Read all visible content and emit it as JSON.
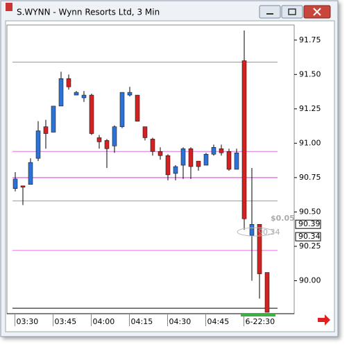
{
  "window_title": "S.WYNN - Wynn Resorts Ltd, 3 Min",
  "chart_data": {
    "type": "candlestick",
    "up_color": "#2f72d6",
    "down_color": "#d42222",
    "categories": [
      "03:30",
      null,
      null,
      null,
      null,
      "03:45",
      null,
      null,
      null,
      null,
      "04:00",
      null,
      null,
      null,
      null,
      "04:15",
      null,
      null,
      null,
      null,
      "04:30",
      null,
      null,
      null,
      null,
      "04:45",
      null,
      null,
      null,
      null,
      "6-22:30",
      null,
      null,
      null
    ],
    "open": [
      90.67,
      90.69,
      90.7,
      90.89,
      91.12,
      91.08,
      91.27,
      91.47,
      91.35,
      91.33,
      91.35,
      91.04,
      91.02,
      90.98,
      91.12,
      91.35,
      91.35,
      91.12,
      91.03,
      90.94,
      90.91,
      90.78,
      90.84,
      90.96,
      90.87,
      90.84,
      90.92,
      90.96,
      90.94,
      90.81,
      91.6,
      90.33,
      90.41,
      90.06
    ],
    "high": [
      90.79,
      90.69,
      90.89,
      91.16,
      91.17,
      91.27,
      91.52,
      91.5,
      91.38,
      91.38,
      91.36,
      91.06,
      91.03,
      91.13,
      91.37,
      91.41,
      91.35,
      91.12,
      91.04,
      90.97,
      90.92,
      90.84,
      90.97,
      90.97,
      90.87,
      90.93,
      90.99,
      90.99,
      90.96,
      90.96,
      91.82,
      90.82,
      90.41,
      90.06
    ],
    "low": [
      90.65,
      90.55,
      90.7,
      90.87,
      90.96,
      91.08,
      91.27,
      91.39,
      91.35,
      91.3,
      91.06,
      90.96,
      90.82,
      90.93,
      91.11,
      91.34,
      91.16,
      91.02,
      90.91,
      90.88,
      90.73,
      90.73,
      90.74,
      90.74,
      90.8,
      90.84,
      90.91,
      90.91,
      90.8,
      90.81,
      90.37,
      90.0,
      89.87,
      89.77
    ],
    "close": [
      90.74,
      90.68,
      90.86,
      91.09,
      91.07,
      91.27,
      91.47,
      91.41,
      91.37,
      91.35,
      91.07,
      91.01,
      90.96,
      91.12,
      91.37,
      91.37,
      91.16,
      91.04,
      90.94,
      90.91,
      90.77,
      90.83,
      90.96,
      90.83,
      90.83,
      90.92,
      90.97,
      90.93,
      90.81,
      90.93,
      90.45,
      90.41,
      90.05,
      89.77
    ],
    "ylim": [
      89.76,
      91.86
    ],
    "yticks": [
      90.25,
      {
        "value": 90.5,
        "label": "90.50"
      },
      90.75,
      {
        "value": 91.0,
        "label": "91.00"
      },
      91.25,
      {
        "value": 91.5,
        "label": "91.50"
      },
      91.75,
      {
        "value": 90.0,
        "label": "90.00"
      }
    ],
    "levels": [
      {
        "value": 91.59,
        "color": "#999999"
      },
      {
        "value": 90.94,
        "color": "#e070e0"
      },
      {
        "value": 90.75,
        "color": "#f070f0"
      },
      {
        "value": 90.58,
        "color": "#e070e0"
      },
      {
        "value": 90.22,
        "color": "#e070e0"
      },
      {
        "value": 89.8,
        "color": "#000000"
      }
    ],
    "price_labels": [
      {
        "value": 90.39,
        "label": "90.39"
      },
      {
        "value": 90.34,
        "label": "90.34"
      }
    ],
    "annotations": [
      "$0.05",
      "90.34"
    ]
  }
}
